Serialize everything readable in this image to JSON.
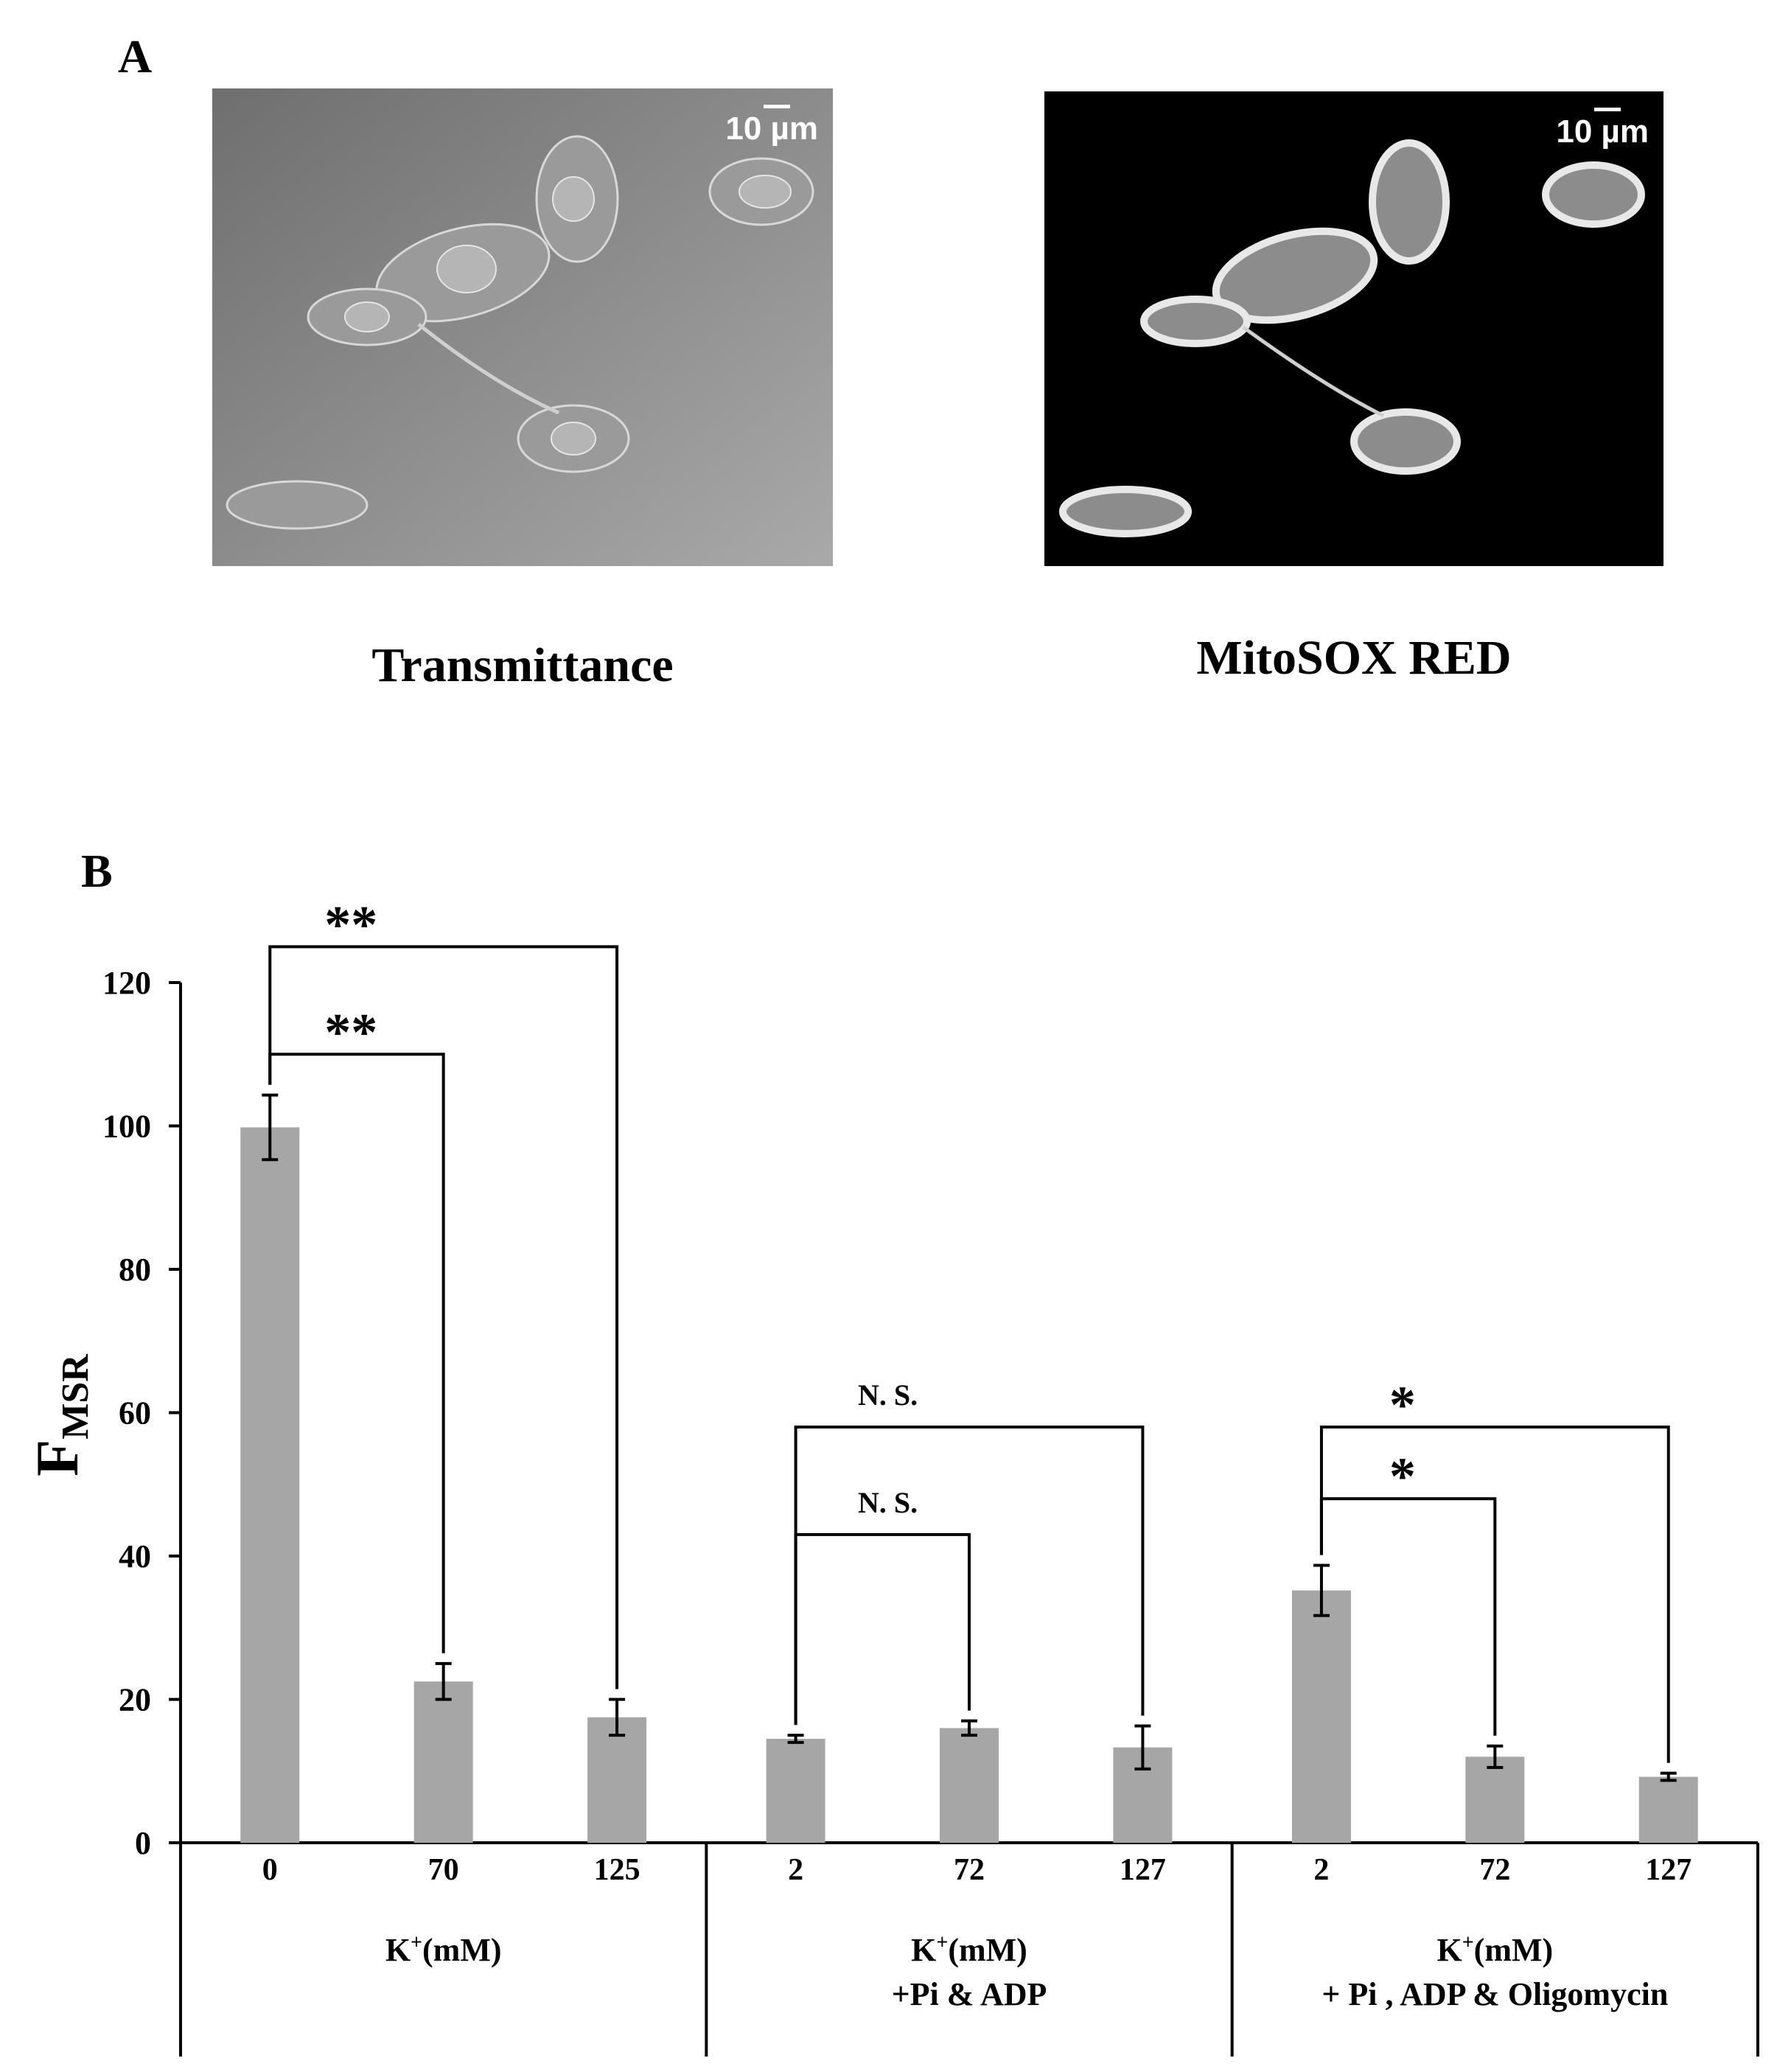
{
  "panel_a": {
    "label": "A",
    "images": [
      {
        "caption": "Transmittance",
        "scale_label": "10 µm"
      },
      {
        "caption": "MitoSOX RED",
        "scale_label": "10 µm"
      }
    ]
  },
  "panel_b": {
    "label": "B"
  },
  "chart_data": {
    "type": "bar",
    "ylabel_main": "F",
    "ylabel_sub": "MSR",
    "ylim": [
      0,
      120
    ],
    "yticks": [
      0,
      20,
      40,
      60,
      80,
      100,
      120
    ],
    "bar_color": "#a6a6a6",
    "groups": [
      {
        "label_lines": [
          "K+(mM)"
        ],
        "categories": [
          "0",
          "70",
          "125"
        ],
        "values": [
          99.8,
          22.5,
          17.5
        ],
        "errors": [
          4.5,
          2.5,
          2.5
        ]
      },
      {
        "label_lines": [
          "K+(mM)",
          "+Pi & ADP"
        ],
        "categories": [
          "2",
          "72",
          "127"
        ],
        "values": [
          14.5,
          16.0,
          13.3
        ],
        "errors": [
          0.5,
          1.0,
          3.0
        ]
      },
      {
        "label_lines": [
          "K+(mM)",
          "+ Pi , ADP & Oligomycin"
        ],
        "categories": [
          "2",
          "72",
          "127"
        ],
        "values": [
          35.2,
          12.0,
          9.2
        ],
        "errors": [
          3.5,
          1.5,
          0.5
        ]
      }
    ],
    "significance": [
      {
        "from": 0,
        "to": 2,
        "y": 125,
        "label": "**"
      },
      {
        "from": 0,
        "to": 1,
        "y": 110,
        "label": "**"
      },
      {
        "from": 3,
        "to": 5,
        "y": 58,
        "label": "N. S."
      },
      {
        "from": 3,
        "to": 4,
        "y": 43,
        "label": "N. S."
      },
      {
        "from": 6,
        "to": 8,
        "y": 58,
        "label": "*"
      },
      {
        "from": 6,
        "to": 7,
        "y": 48,
        "label": "*"
      }
    ]
  }
}
